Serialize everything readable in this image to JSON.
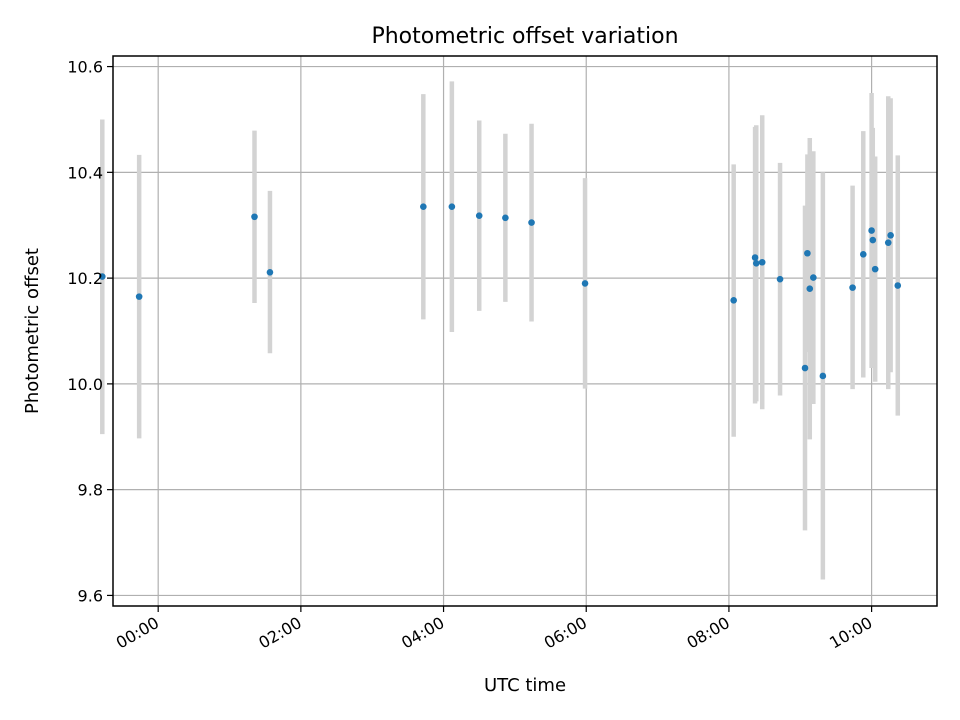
{
  "chart_data": {
    "type": "scatter",
    "title": "Photometric offset variation",
    "xlabel": "UTC time",
    "ylabel": "Photometric offset",
    "x_ticks": [
      "00:00",
      "02:00",
      "04:00",
      "06:00",
      "08:00",
      "10:00"
    ],
    "y_ticks": [
      "9.6",
      "9.8",
      "10.0",
      "10.2",
      "10.4",
      "10.6"
    ],
    "xlim": [
      "23:22",
      "10:55"
    ],
    "ylim": [
      9.58,
      10.62
    ],
    "grid": true,
    "point_color": "#1f77b4",
    "errorbar_color": "#d3d3d3",
    "points": [
      {
        "x": "23:13",
        "y": 10.203,
        "y_low": 9.905,
        "y_high": 10.5
      },
      {
        "x": "23:44",
        "y": 10.165,
        "y_low": 9.897,
        "y_high": 10.433
      },
      {
        "x": "01:21",
        "y": 10.316,
        "y_low": 10.153,
        "y_high": 10.479
      },
      {
        "x": "01:34",
        "y": 10.211,
        "y_low": 10.058,
        "y_high": 10.365
      },
      {
        "x": "03:43",
        "y": 10.335,
        "y_low": 10.122,
        "y_high": 10.548
      },
      {
        "x": "04:07",
        "y": 10.335,
        "y_low": 10.098,
        "y_high": 10.572
      },
      {
        "x": "04:30",
        "y": 10.318,
        "y_low": 10.138,
        "y_high": 10.498
      },
      {
        "x": "04:52",
        "y": 10.314,
        "y_low": 10.155,
        "y_high": 10.473
      },
      {
        "x": "05:14",
        "y": 10.305,
        "y_low": 10.118,
        "y_high": 10.492
      },
      {
        "x": "05:59",
        "y": 10.19,
        "y_low": 9.991,
        "y_high": 10.389
      },
      {
        "x": "08:04",
        "y": 10.158,
        "y_low": 9.9,
        "y_high": 10.415
      },
      {
        "x": "08:22",
        "y": 10.239,
        "y_low": 9.963,
        "y_high": 10.486
      },
      {
        "x": "08:23",
        "y": 10.228,
        "y_low": 9.967,
        "y_high": 10.489
      },
      {
        "x": "08:28",
        "y": 10.23,
        "y_low": 9.952,
        "y_high": 10.508
      },
      {
        "x": "08:43",
        "y": 10.198,
        "y_low": 9.978,
        "y_high": 10.418
      },
      {
        "x": "09:04",
        "y": 10.03,
        "y_low": 9.723,
        "y_high": 10.337
      },
      {
        "x": "09:06",
        "y": 10.247,
        "y_low": 10.06,
        "y_high": 10.434
      },
      {
        "x": "09:08",
        "y": 10.18,
        "y_low": 9.895,
        "y_high": 10.465
      },
      {
        "x": "09:11",
        "y": 10.201,
        "y_low": 9.962,
        "y_high": 10.44
      },
      {
        "x": "09:19",
        "y": 10.015,
        "y_low": 9.63,
        "y_high": 10.4
      },
      {
        "x": "09:44",
        "y": 10.182,
        "y_low": 9.99,
        "y_high": 10.375
      },
      {
        "x": "09:53",
        "y": 10.245,
        "y_low": 10.012,
        "y_high": 10.478
      },
      {
        "x": "10:00",
        "y": 10.29,
        "y_low": 10.03,
        "y_high": 10.55
      },
      {
        "x": "10:01",
        "y": 10.272,
        "y_low": 10.06,
        "y_high": 10.484
      },
      {
        "x": "10:03",
        "y": 10.217,
        "y_low": 10.004,
        "y_high": 10.43
      },
      {
        "x": "10:14",
        "y": 10.267,
        "y_low": 9.99,
        "y_high": 10.544
      },
      {
        "x": "10:16",
        "y": 10.281,
        "y_low": 10.022,
        "y_high": 10.54
      },
      {
        "x": "10:22",
        "y": 10.186,
        "y_low": 9.94,
        "y_high": 10.432
      }
    ]
  }
}
